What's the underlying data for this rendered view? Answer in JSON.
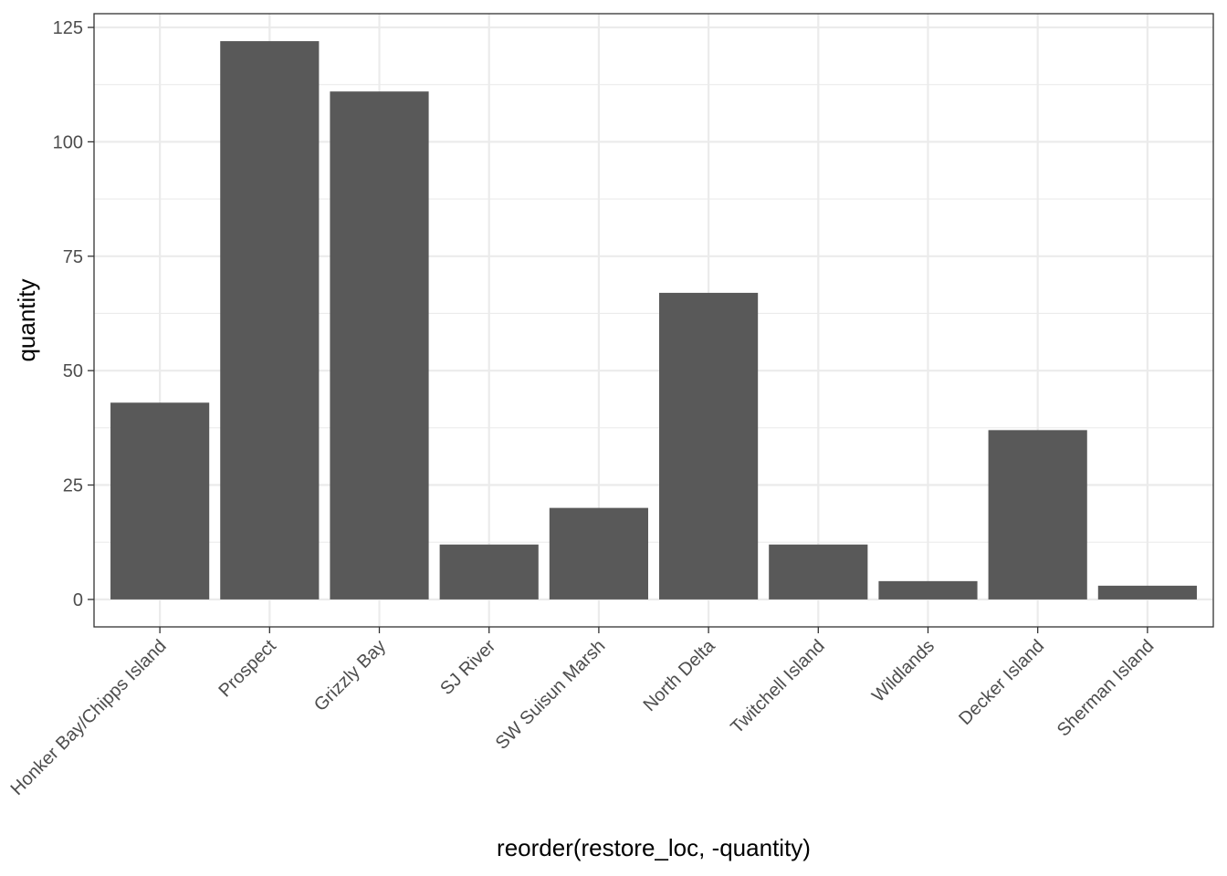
{
  "chart_data": {
    "type": "bar",
    "title": "",
    "xlabel": "reorder(restore_loc, -quantity)",
    "ylabel": "quantity",
    "categories": [
      "Honker Bay/Chipps Island",
      "Prospect",
      "Grizzly Bay",
      "SJ River",
      "SW Suisun Marsh",
      "North Delta",
      "Twitchell Island",
      "Wildlands",
      "Decker Island",
      "Sherman Island"
    ],
    "values": [
      43,
      122,
      111,
      12,
      20,
      67,
      12,
      4,
      37,
      3
    ],
    "ylim": [
      -6,
      128
    ],
    "yticks": [
      0,
      25,
      50,
      75,
      100,
      125
    ],
    "grid": true,
    "legend": "none",
    "bar_color": "#595959",
    "grid_color": "#ebebeb",
    "panel_border_color": "#333333"
  }
}
